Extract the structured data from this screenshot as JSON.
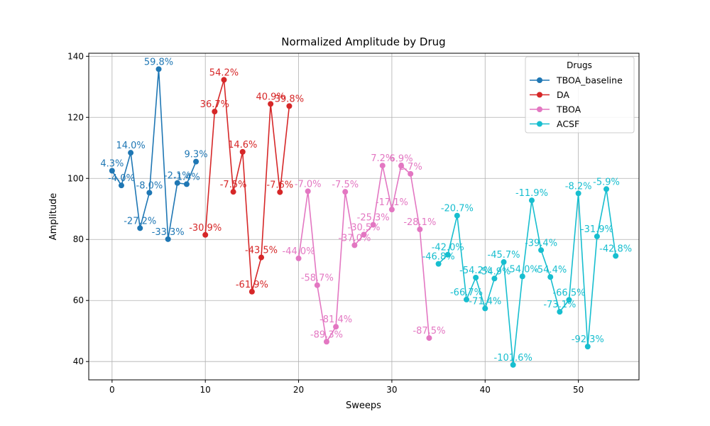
{
  "chart_data": {
    "type": "line",
    "title": "Normalized Amplitude by Drug",
    "xlabel": "Sweeps",
    "ylabel": "Amplitude",
    "xlim": [
      -2.5,
      56.5
    ],
    "ylim": [
      34,
      141
    ],
    "xticks": [
      0,
      10,
      20,
      30,
      40,
      50
    ],
    "yticks": [
      40,
      60,
      80,
      100,
      120,
      140
    ],
    "grid": true,
    "legend": {
      "title": "Drugs",
      "placement": "top-right"
    },
    "series": [
      {
        "name": "TBOA_baseline",
        "color": "#1f77b4",
        "x": [
          0,
          1,
          2,
          3,
          4,
          5,
          6,
          7,
          8,
          9
        ],
        "y": [
          102.5,
          97.7,
          108.4,
          83.7,
          95.3,
          135.8,
          80.1,
          98.5,
          98.1,
          105.5
        ],
        "labels": [
          "4.3%",
          "-4.0%",
          "14.0%",
          "-27.2%",
          "-8.0%",
          "59.8%",
          "-33.3%",
          "-2.1%",
          "-1.4%",
          "9.3%"
        ]
      },
      {
        "name": "DA",
        "color": "#d62728",
        "x": [
          10,
          11,
          12,
          13,
          14,
          15,
          16,
          17,
          18,
          19
        ],
        "y": [
          81.5,
          121.9,
          132.3,
          95.6,
          108.7,
          62.9,
          74.1,
          124.4,
          95.5,
          123.7
        ],
        "labels": [
          "-30.9%",
          "36.7%",
          "54.2%",
          "-7.5%",
          "14.6%",
          "-61.9%",
          "-43.5%",
          "40.9%",
          "-7.6%",
          "39.8%"
        ]
      },
      {
        "name": "TBOA",
        "color": "#e377c2",
        "x": [
          20,
          21,
          22,
          23,
          24,
          25,
          26,
          27,
          28,
          29,
          30,
          31,
          32,
          33,
          34
        ],
        "y": [
          73.8,
          95.8,
          65.0,
          46.5,
          51.4,
          95.6,
          78.1,
          81.6,
          84.8,
          104.2,
          89.8,
          104.1,
          101.5,
          83.3,
          47.7
        ],
        "labels": [
          "-44.0%",
          "-7.0%",
          "-58.7%",
          "-89.3%",
          "-81.4%",
          "-7.5%",
          "-37.0%",
          "-30.5%",
          "-25.3%",
          "7.2%",
          "-17.1%",
          "6.9%",
          "2.7%",
          "-28.1%",
          "-87.5%"
        ]
      },
      {
        "name": "ACSF",
        "color": "#17becf",
        "x": [
          35,
          36,
          37,
          38,
          39,
          40,
          41,
          42,
          43,
          44,
          45,
          46,
          47,
          48,
          49,
          50,
          51,
          52,
          53,
          54
        ],
        "y": [
          72.0,
          75.0,
          87.8,
          60.3,
          67.5,
          57.4,
          67.2,
          72.6,
          38.9,
          67.9,
          92.8,
          76.5,
          67.7,
          56.3,
          60.2,
          95.1,
          44.9,
          81.0,
          96.5,
          74.6
        ],
        "labels": [
          "-46.8%",
          "-42.0%",
          "-20.7%",
          "-66.7%",
          "-54.2%",
          "-71.4%",
          "-54.9%",
          "-45.7%",
          "-101.6%",
          "-54.0%",
          "-11.9%",
          "-39.4%",
          "-54.4%",
          "-73.1%",
          "-66.5%",
          "-8.2%",
          "-92.3%",
          "-31.9%",
          "-5.9%",
          "-42.8%"
        ]
      }
    ]
  }
}
